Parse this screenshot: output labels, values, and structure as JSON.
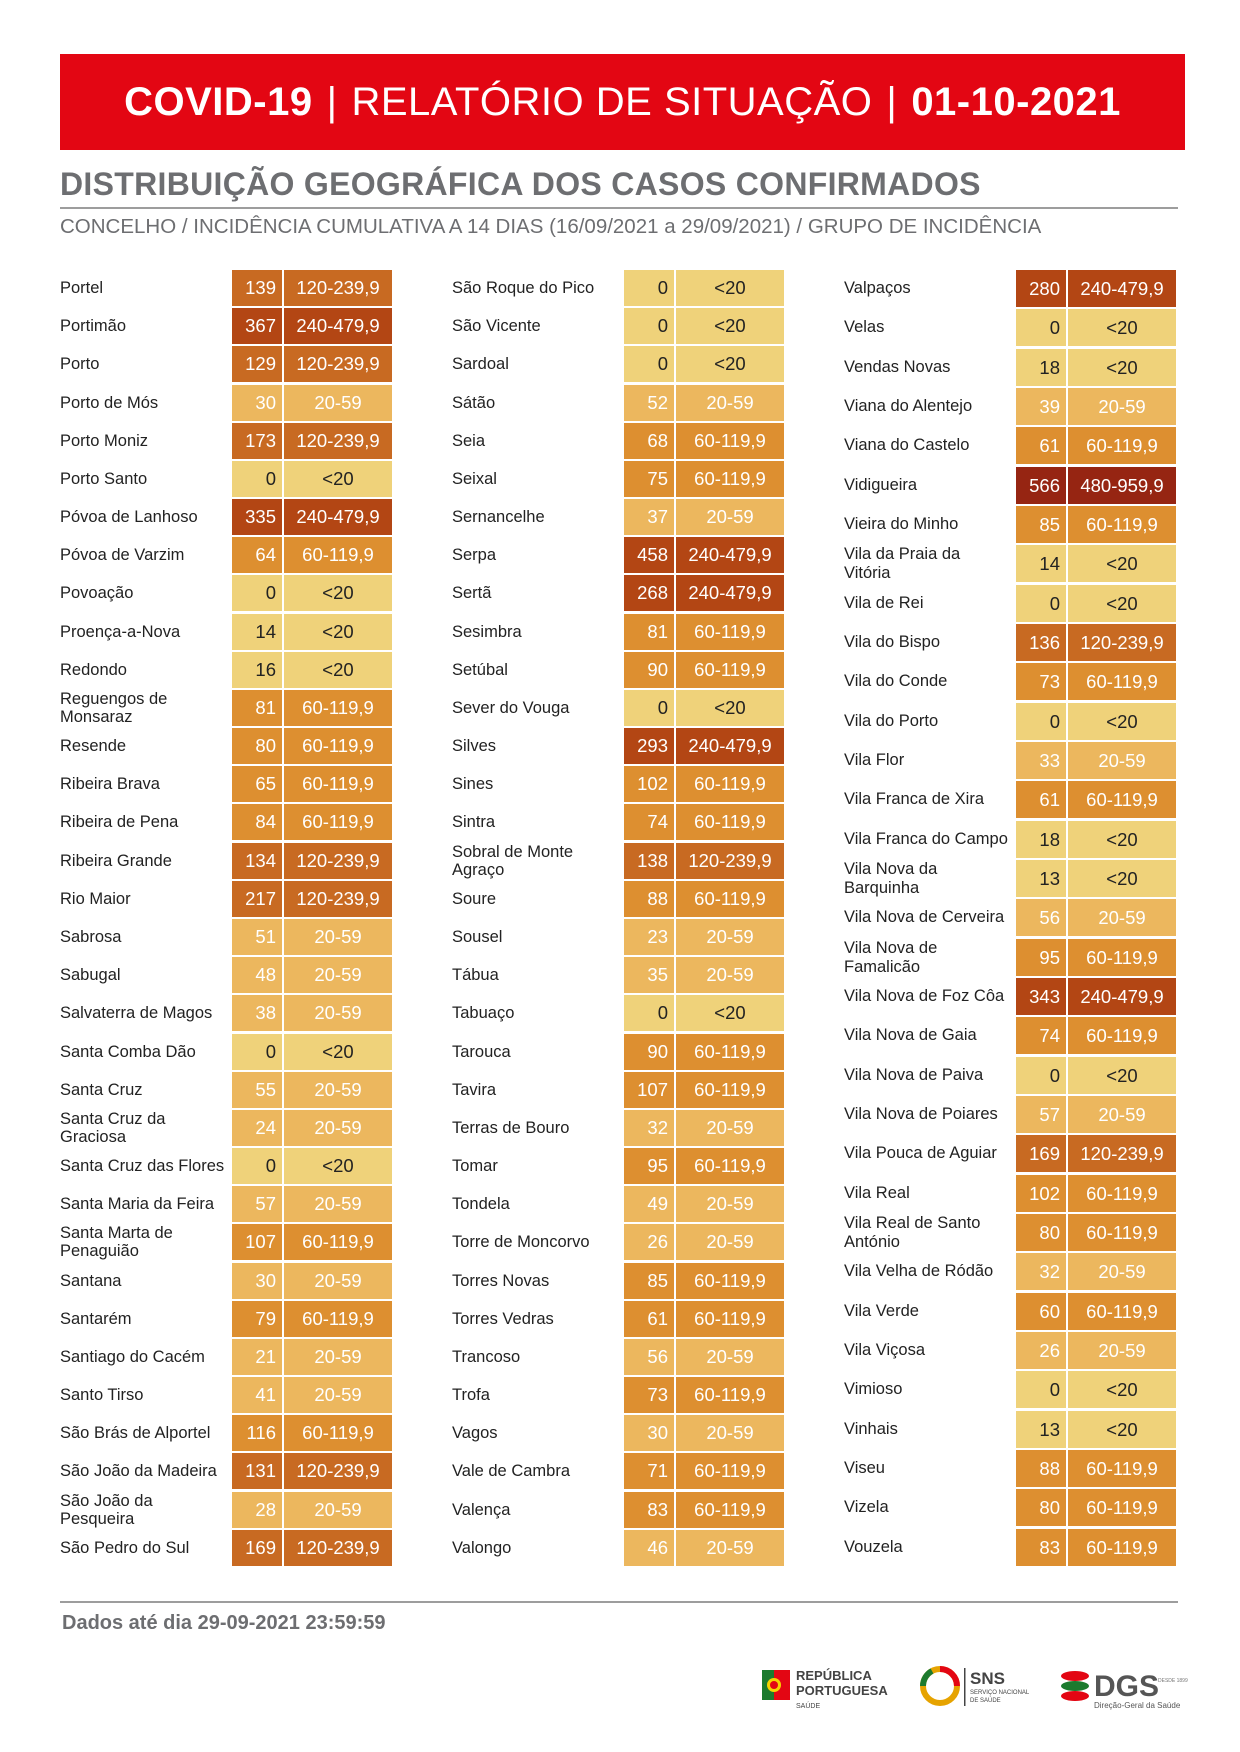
{
  "header": {
    "title_part1": "COVID-19",
    "title_part2": "RELATÓRIO DE SITUAÇÃO",
    "title_part3": "01-10-2021",
    "separator": "|"
  },
  "section": {
    "title": "DISTRIBUIÇÃO GEOGRÁFICA DOS CASOS CONFIRMADOS",
    "subtitle": "CONCELHO / INCIDÊNCIA CUMULATIVA A 14 DIAS (16/09/2021 a 29/09/2021) / GRUPO DE INCIDÊNCIA"
  },
  "colors": {
    "banner": "#e30613",
    "lt20": "#efd27a",
    "20-59": "#ecb75e",
    "60-119,9": "#dd8f30",
    "120-239,9": "#c86a22",
    "240-479,9": "#b34614",
    "480-959,9": "#962512"
  },
  "columns": [
    [
      {
        "name": "Portel",
        "value": "139",
        "group": "120-239,9"
      },
      {
        "name": "Portimão",
        "value": "367",
        "group": "240-479,9"
      },
      {
        "name": "Porto",
        "value": "129",
        "group": "120-239,9"
      },
      {
        "name": "Porto de Mós",
        "value": "30",
        "group": "20-59"
      },
      {
        "name": "Porto Moniz",
        "value": "173",
        "group": "120-239,9"
      },
      {
        "name": "Porto Santo",
        "value": "0",
        "group": "<20"
      },
      {
        "name": "Póvoa de Lanhoso",
        "value": "335",
        "group": "240-479,9"
      },
      {
        "name": "Póvoa de Varzim",
        "value": "64",
        "group": "60-119,9"
      },
      {
        "name": "Povoação",
        "value": "0",
        "group": "<20"
      },
      {
        "name": "Proença-a-Nova",
        "value": "14",
        "group": "<20"
      },
      {
        "name": "Redondo",
        "value": "16",
        "group": "<20"
      },
      {
        "name": "Reguengos de Monsaraz",
        "value": "81",
        "group": "60-119,9"
      },
      {
        "name": "Resende",
        "value": "80",
        "group": "60-119,9"
      },
      {
        "name": "Ribeira Brava",
        "value": "65",
        "group": "60-119,9"
      },
      {
        "name": "Ribeira de Pena",
        "value": "84",
        "group": "60-119,9"
      },
      {
        "name": "Ribeira Grande",
        "value": "134",
        "group": "120-239,9"
      },
      {
        "name": "Rio Maior",
        "value": "217",
        "group": "120-239,9"
      },
      {
        "name": "Sabrosa",
        "value": "51",
        "group": "20-59"
      },
      {
        "name": "Sabugal",
        "value": "48",
        "group": "20-59"
      },
      {
        "name": "Salvaterra de Magos",
        "value": "38",
        "group": "20-59"
      },
      {
        "name": "Santa Comba Dão",
        "value": "0",
        "group": "<20"
      },
      {
        "name": "Santa Cruz",
        "value": "55",
        "group": "20-59"
      },
      {
        "name": "Santa Cruz da Graciosa",
        "value": "24",
        "group": "20-59"
      },
      {
        "name": "Santa Cruz das Flores",
        "value": "0",
        "group": "<20"
      },
      {
        "name": "Santa Maria da Feira",
        "value": "57",
        "group": "20-59"
      },
      {
        "name": "Santa Marta de Penaguião",
        "value": "107",
        "group": "60-119,9"
      },
      {
        "name": "Santana",
        "value": "30",
        "group": "20-59"
      },
      {
        "name": "Santarém",
        "value": "79",
        "group": "60-119,9"
      },
      {
        "name": "Santiago do Cacém",
        "value": "21",
        "group": "20-59"
      },
      {
        "name": "Santo Tirso",
        "value": "41",
        "group": "20-59"
      },
      {
        "name": "São Brás de Alportel",
        "value": "116",
        "group": "60-119,9"
      },
      {
        "name": "São João da Madeira",
        "value": "131",
        "group": "120-239,9"
      },
      {
        "name": "São João da Pesqueira",
        "value": "28",
        "group": "20-59"
      },
      {
        "name": "São Pedro do Sul",
        "value": "169",
        "group": "120-239,9"
      }
    ],
    [
      {
        "name": "São Roque do Pico",
        "value": "0",
        "group": "<20"
      },
      {
        "name": "São Vicente",
        "value": "0",
        "group": "<20"
      },
      {
        "name": "Sardoal",
        "value": "0",
        "group": "<20"
      },
      {
        "name": "Sátão",
        "value": "52",
        "group": "20-59"
      },
      {
        "name": "Seia",
        "value": "68",
        "group": "60-119,9"
      },
      {
        "name": "Seixal",
        "value": "75",
        "group": "60-119,9"
      },
      {
        "name": "Sernancelhe",
        "value": "37",
        "group": "20-59"
      },
      {
        "name": "Serpa",
        "value": "458",
        "group": "240-479,9"
      },
      {
        "name": "Sertã",
        "value": "268",
        "group": "240-479,9"
      },
      {
        "name": "Sesimbra",
        "value": "81",
        "group": "60-119,9"
      },
      {
        "name": "Setúbal",
        "value": "90",
        "group": "60-119,9"
      },
      {
        "name": "Sever do Vouga",
        "value": "0",
        "group": "<20"
      },
      {
        "name": "Silves",
        "value": "293",
        "group": "240-479,9"
      },
      {
        "name": "Sines",
        "value": "102",
        "group": "60-119,9"
      },
      {
        "name": "Sintra",
        "value": "74",
        "group": "60-119,9"
      },
      {
        "name": "Sobral de Monte Agraço",
        "value": "138",
        "group": "120-239,9"
      },
      {
        "name": "Soure",
        "value": "88",
        "group": "60-119,9"
      },
      {
        "name": "Sousel",
        "value": "23",
        "group": "20-59"
      },
      {
        "name": "Tábua",
        "value": "35",
        "group": "20-59"
      },
      {
        "name": "Tabuaço",
        "value": "0",
        "group": "<20"
      },
      {
        "name": "Tarouca",
        "value": "90",
        "group": "60-119,9"
      },
      {
        "name": "Tavira",
        "value": "107",
        "group": "60-119,9"
      },
      {
        "name": "Terras de Bouro",
        "value": "32",
        "group": "20-59"
      },
      {
        "name": "Tomar",
        "value": "95",
        "group": "60-119,9"
      },
      {
        "name": "Tondela",
        "value": "49",
        "group": "20-59"
      },
      {
        "name": "Torre de Moncorvo",
        "value": "26",
        "group": "20-59"
      },
      {
        "name": "Torres Novas",
        "value": "85",
        "group": "60-119,9"
      },
      {
        "name": "Torres Vedras",
        "value": "61",
        "group": "60-119,9"
      },
      {
        "name": "Trancoso",
        "value": "56",
        "group": "20-59"
      },
      {
        "name": "Trofa",
        "value": "73",
        "group": "60-119,9"
      },
      {
        "name": "Vagos",
        "value": "30",
        "group": "20-59"
      },
      {
        "name": "Vale de Cambra",
        "value": "71",
        "group": "60-119,9"
      },
      {
        "name": "Valença",
        "value": "83",
        "group": "60-119,9"
      },
      {
        "name": "Valongo",
        "value": "46",
        "group": "20-59"
      }
    ],
    [
      {
        "name": "Valpaços",
        "value": "280",
        "group": "240-479,9"
      },
      {
        "name": "Velas",
        "value": "0",
        "group": "<20"
      },
      {
        "name": "Vendas Novas",
        "value": "18",
        "group": "<20"
      },
      {
        "name": "Viana do Alentejo",
        "value": "39",
        "group": "20-59"
      },
      {
        "name": "Viana do Castelo",
        "value": "61",
        "group": "60-119,9"
      },
      {
        "name": "Vidigueira",
        "value": "566",
        "group": "480-959,9"
      },
      {
        "name": "Vieira do Minho",
        "value": "85",
        "group": "60-119,9"
      },
      {
        "name": "Vila da Praia da Vitória",
        "value": "14",
        "group": "<20"
      },
      {
        "name": "Vila de Rei",
        "value": "0",
        "group": "<20"
      },
      {
        "name": "Vila do Bispo",
        "value": "136",
        "group": "120-239,9"
      },
      {
        "name": "Vila do Conde",
        "value": "73",
        "group": "60-119,9"
      },
      {
        "name": "Vila do Porto",
        "value": "0",
        "group": "<20"
      },
      {
        "name": "Vila Flor",
        "value": "33",
        "group": "20-59"
      },
      {
        "name": "Vila Franca de Xira",
        "value": "61",
        "group": "60-119,9"
      },
      {
        "name": "Vila Franca do Campo",
        "value": "18",
        "group": "<20"
      },
      {
        "name": "Vila Nova da Barquinha",
        "value": "13",
        "group": "<20"
      },
      {
        "name": "Vila Nova de Cerveira",
        "value": "56",
        "group": "20-59"
      },
      {
        "name": "Vila Nova de Famalicão",
        "value": "95",
        "group": "60-119,9"
      },
      {
        "name": "Vila Nova de Foz Côa",
        "value": "343",
        "group": "240-479,9"
      },
      {
        "name": "Vila Nova de Gaia",
        "value": "74",
        "group": "60-119,9"
      },
      {
        "name": "Vila Nova de Paiva",
        "value": "0",
        "group": "<20"
      },
      {
        "name": "Vila Nova de Poiares",
        "value": "57",
        "group": "20-59"
      },
      {
        "name": "Vila Pouca de Aguiar",
        "value": "169",
        "group": "120-239,9"
      },
      {
        "name": "Vila Real",
        "value": "102",
        "group": "60-119,9"
      },
      {
        "name": "Vila Real de Santo António",
        "value": "80",
        "group": "60-119,9"
      },
      {
        "name": "Vila Velha de Ródão",
        "value": "32",
        "group": "20-59"
      },
      {
        "name": "Vila Verde",
        "value": "60",
        "group": "60-119,9"
      },
      {
        "name": "Vila Viçosa",
        "value": "26",
        "group": "20-59"
      },
      {
        "name": "Vimioso",
        "value": "0",
        "group": "<20"
      },
      {
        "name": "Vinhais",
        "value": "13",
        "group": "<20"
      },
      {
        "name": "Viseu",
        "value": "88",
        "group": "60-119,9"
      },
      {
        "name": "Vizela",
        "value": "80",
        "group": "60-119,9"
      },
      {
        "name": "Vouzela",
        "value": "83",
        "group": "60-119,9"
      }
    ]
  ],
  "footer": {
    "data_note": "Dados até dia 29-09-2021 23:59:59"
  },
  "logos": {
    "republica_line1": "REPÚBLICA",
    "republica_line2": "PORTUGUESA",
    "republica_line3": "SAÚDE",
    "sns_line1": "SNS",
    "sns_line2": "SERVIÇO NACIONAL",
    "sns_line3": "DE SAÚDE",
    "dgs_line1": "DGS",
    "dgs_line2": "Direção-Geral da Saúde",
    "dgs_line3": "DESDE 1899"
  }
}
